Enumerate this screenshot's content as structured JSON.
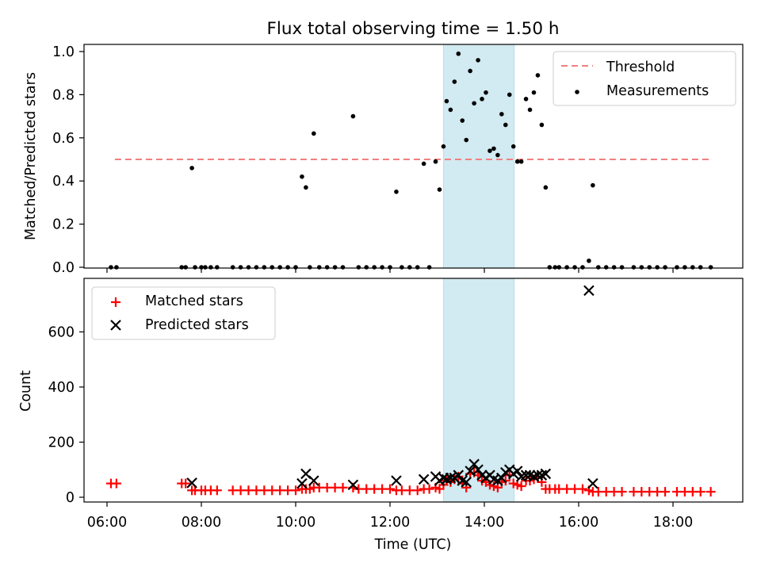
{
  "chart_data": {
    "type": "scatter",
    "title": "Flux total observing time = 1.50 h",
    "shaded_region": {
      "start": "13:08",
      "end": "14:38",
      "color": "#add8e6"
    },
    "x_ticks": [
      "06:00",
      "08:00",
      "10:00",
      "12:00",
      "14:00",
      "16:00",
      "18:00"
    ],
    "x_label": "Time (UTC)",
    "panels": [
      {
        "ylabel": "Matched/Predicted stars",
        "ylim": [
          0,
          1.03
        ],
        "yticks": [
          "0.0",
          "0.2",
          "0.4",
          "0.6",
          "0.8",
          "1.0"
        ],
        "legend_position": "upper right",
        "threshold": {
          "name": "Threshold",
          "value": 0.5,
          "x_range": [
            "06:10",
            "18:50"
          ],
          "color": "#f08080"
        },
        "series": [
          {
            "name": "Measurements",
            "color": "#000000",
            "points": [
              [
                "06:05",
                0
              ],
              [
                "06:12",
                0
              ],
              [
                "07:35",
                0
              ],
              [
                "07:40",
                0
              ],
              [
                "07:48",
                0.46
              ],
              [
                "07:52",
                0
              ],
              [
                "08:00",
                0
              ],
              [
                "08:05",
                0
              ],
              [
                "08:12",
                0
              ],
              [
                "08:20",
                0
              ],
              [
                "08:40",
                0
              ],
              [
                "08:50",
                0
              ],
              [
                "09:00",
                0
              ],
              [
                "09:10",
                0
              ],
              [
                "09:20",
                0
              ],
              [
                "09:30",
                0
              ],
              [
                "09:40",
                0
              ],
              [
                "09:50",
                0
              ],
              [
                "10:00",
                0
              ],
              [
                "10:08",
                0.42
              ],
              [
                "10:13",
                0.37
              ],
              [
                "10:18",
                0
              ],
              [
                "10:23",
                0.62
              ],
              [
                "10:30",
                0
              ],
              [
                "10:40",
                0
              ],
              [
                "10:50",
                0
              ],
              [
                "11:00",
                0
              ],
              [
                "11:13",
                0.7
              ],
              [
                "11:20",
                0
              ],
              [
                "11:30",
                0
              ],
              [
                "11:40",
                0
              ],
              [
                "11:50",
                0
              ],
              [
                "12:00",
                0
              ],
              [
                "12:08",
                0.35
              ],
              [
                "12:15",
                0
              ],
              [
                "12:25",
                0
              ],
              [
                "12:35",
                0
              ],
              [
                "12:43",
                0.48
              ],
              [
                "12:50",
                0
              ],
              [
                "12:58",
                0.49
              ],
              [
                "13:03",
                0.36
              ],
              [
                "13:08",
                0.56
              ],
              [
                "13:12",
                0.77
              ],
              [
                "13:17",
                0.73
              ],
              [
                "13:22",
                0.86
              ],
              [
                "13:27",
                0.99
              ],
              [
                "13:32",
                0.68
              ],
              [
                "13:37",
                0.59
              ],
              [
                "13:42",
                0.91
              ],
              [
                "13:47",
                0.76
              ],
              [
                "13:52",
                0.96
              ],
              [
                "13:57",
                0.78
              ],
              [
                "14:02",
                0.81
              ],
              [
                "14:07",
                0.54
              ],
              [
                "14:12",
                0.55
              ],
              [
                "14:17",
                0.52
              ],
              [
                "14:22",
                0.71
              ],
              [
                "14:27",
                0.66
              ],
              [
                "14:32",
                0.8
              ],
              [
                "14:37",
                0.56
              ],
              [
                "14:42",
                0.49
              ],
              [
                "14:47",
                0.49
              ],
              [
                "14:53",
                0.78
              ],
              [
                "14:58",
                0.73
              ],
              [
                "15:03",
                0.81
              ],
              [
                "15:08",
                0.89
              ],
              [
                "15:13",
                0.66
              ],
              [
                "15:18",
                0.37
              ],
              [
                "15:23",
                0
              ],
              [
                "15:30",
                0
              ],
              [
                "15:35",
                0
              ],
              [
                "15:45",
                0
              ],
              [
                "15:55",
                0
              ],
              [
                "16:05",
                0
              ],
              [
                "16:13",
                0.03
              ],
              [
                "16:18",
                0.38
              ],
              [
                "16:25",
                0
              ],
              [
                "16:35",
                0
              ],
              [
                "16:45",
                0
              ],
              [
                "16:55",
                0
              ],
              [
                "17:10",
                0
              ],
              [
                "17:20",
                0
              ],
              [
                "17:30",
                0
              ],
              [
                "17:40",
                0
              ],
              [
                "17:50",
                0
              ],
              [
                "18:05",
                0
              ],
              [
                "18:15",
                0
              ],
              [
                "18:25",
                0
              ],
              [
                "18:35",
                0
              ],
              [
                "18:48",
                0
              ]
            ]
          }
        ]
      },
      {
        "ylabel": "Count",
        "ylim": [
          -20,
          780
        ],
        "yticks": [
          "0",
          "200",
          "400",
          "600"
        ],
        "legend_position": "upper left",
        "series": [
          {
            "name": "Matched stars",
            "color": "#ff0000",
            "marker": "plus",
            "points": [
              [
                "06:05",
                50
              ],
              [
                "06:12",
                50
              ],
              [
                "07:35",
                50
              ],
              [
                "07:40",
                50
              ],
              [
                "07:48",
                25
              ],
              [
                "07:52",
                25
              ],
              [
                "08:00",
                25
              ],
              [
                "08:05",
                25
              ],
              [
                "08:12",
                25
              ],
              [
                "08:20",
                25
              ],
              [
                "08:40",
                25
              ],
              [
                "08:50",
                25
              ],
              [
                "09:00",
                25
              ],
              [
                "09:10",
                25
              ],
              [
                "09:20",
                25
              ],
              [
                "09:30",
                25
              ],
              [
                "09:40",
                25
              ],
              [
                "09:50",
                25
              ],
              [
                "10:00",
                25
              ],
              [
                "10:08",
                30
              ],
              [
                "10:13",
                30
              ],
              [
                "10:18",
                30
              ],
              [
                "10:23",
                35
              ],
              [
                "10:30",
                35
              ],
              [
                "10:40",
                35
              ],
              [
                "10:50",
                35
              ],
              [
                "11:00",
                35
              ],
              [
                "11:13",
                35
              ],
              [
                "11:20",
                30
              ],
              [
                "11:30",
                30
              ],
              [
                "11:40",
                30
              ],
              [
                "11:50",
                30
              ],
              [
                "12:00",
                30
              ],
              [
                "12:08",
                25
              ],
              [
                "12:15",
                25
              ],
              [
                "12:25",
                25
              ],
              [
                "12:35",
                25
              ],
              [
                "12:43",
                30
              ],
              [
                "12:50",
                30
              ],
              [
                "12:58",
                35
              ],
              [
                "13:03",
                30
              ],
              [
                "13:08",
                45
              ],
              [
                "13:12",
                60
              ],
              [
                "13:17",
                55
              ],
              [
                "13:22",
                65
              ],
              [
                "13:27",
                75
              ],
              [
                "13:32",
                50
              ],
              [
                "13:37",
                35
              ],
              [
                "13:42",
                85
              ],
              [
                "13:47",
                90
              ],
              [
                "13:52",
                80
              ],
              [
                "13:57",
                60
              ],
              [
                "14:02",
                55
              ],
              [
                "14:07",
                45
              ],
              [
                "14:12",
                40
              ],
              [
                "14:17",
                35
              ],
              [
                "14:22",
                55
              ],
              [
                "14:27",
                60
              ],
              [
                "14:32",
                80
              ],
              [
                "14:37",
                50
              ],
              [
                "14:42",
                45
              ],
              [
                "14:47",
                40
              ],
              [
                "14:53",
                60
              ],
              [
                "14:58",
                60
              ],
              [
                "15:03",
                65
              ],
              [
                "15:08",
                70
              ],
              [
                "15:13",
                55
              ],
              [
                "15:18",
                30
              ],
              [
                "15:23",
                30
              ],
              [
                "15:30",
                30
              ],
              [
                "15:35",
                30
              ],
              [
                "15:45",
                30
              ],
              [
                "15:55",
                30
              ],
              [
                "16:05",
                30
              ],
              [
                "16:13",
                25
              ],
              [
                "16:18",
                20
              ],
              [
                "16:25",
                20
              ],
              [
                "16:35",
                20
              ],
              [
                "16:45",
                20
              ],
              [
                "16:55",
                20
              ],
              [
                "17:10",
                20
              ],
              [
                "17:20",
                20
              ],
              [
                "17:30",
                20
              ],
              [
                "17:40",
                20
              ],
              [
                "17:50",
                20
              ],
              [
                "18:05",
                20
              ],
              [
                "18:15",
                20
              ],
              [
                "18:25",
                20
              ],
              [
                "18:35",
                20
              ],
              [
                "18:48",
                20
              ]
            ]
          },
          {
            "name": "Predicted stars",
            "color": "#000000",
            "marker": "x",
            "points": [
              [
                "07:48",
                52
              ],
              [
                "10:08",
                50
              ],
              [
                "10:13",
                85
              ],
              [
                "10:23",
                60
              ],
              [
                "11:13",
                45
              ],
              [
                "12:08",
                60
              ],
              [
                "12:43",
                65
              ],
              [
                "12:58",
                75
              ],
              [
                "13:03",
                60
              ],
              [
                "13:08",
                70
              ],
              [
                "13:12",
                65
              ],
              [
                "13:17",
                70
              ],
              [
                "13:22",
                70
              ],
              [
                "13:27",
                80
              ],
              [
                "13:32",
                60
              ],
              [
                "13:37",
                55
              ],
              [
                "13:42",
                95
              ],
              [
                "13:47",
                120
              ],
              [
                "13:52",
                100
              ],
              [
                "13:57",
                80
              ],
              [
                "14:02",
                70
              ],
              [
                "14:07",
                80
              ],
              [
                "14:12",
                65
              ],
              [
                "14:17",
                60
              ],
              [
                "14:22",
                70
              ],
              [
                "14:27",
                90
              ],
              [
                "14:32",
                100
              ],
              [
                "14:37",
                85
              ],
              [
                "14:42",
                95
              ],
              [
                "14:47",
                75
              ],
              [
                "14:53",
                80
              ],
              [
                "14:58",
                80
              ],
              [
                "15:03",
                75
              ],
              [
                "15:08",
                80
              ],
              [
                "15:13",
                80
              ],
              [
                "15:18",
                85
              ],
              [
                "16:13",
                750
              ],
              [
                "16:18",
                50
              ]
            ]
          }
        ]
      }
    ]
  }
}
